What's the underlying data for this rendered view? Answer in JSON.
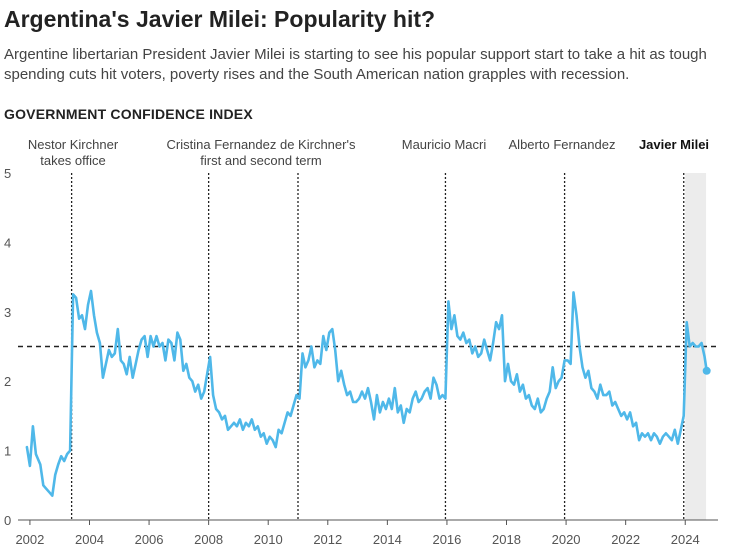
{
  "header": {
    "title": "Argentina's Javier Milei: Popularity hit?",
    "subtitle": "Argentine libertarian President Javier Milei is starting to see his popular support start to take a hit as tough spending cuts hit voters, poverty rises and the South American nation grapples with recession.",
    "section_label": "GOVERNMENT CONFIDENCE INDEX"
  },
  "colors": {
    "line": "#4fb8e9",
    "shade": "#ececec",
    "axis": "#555555",
    "text": "#444444"
  },
  "chart_data": {
    "type": "line",
    "title": "GOVERNMENT CONFIDENCE INDEX",
    "xlabel": "",
    "ylabel": "",
    "xlim": [
      2001.6,
      2025.1
    ],
    "ylim": [
      0,
      5
    ],
    "x_ticks": [
      "2002",
      "2004",
      "2006",
      "2008",
      "2010",
      "2012",
      "2014",
      "2016",
      "2018",
      "2020",
      "2022",
      "2024"
    ],
    "y_ticks": [
      "0",
      "1",
      "2",
      "3",
      "4",
      "5"
    ],
    "reference_line": {
      "y": 2.5,
      "style": "dashed"
    },
    "shaded_range": {
      "x_start": 2024.0,
      "x_end": 2024.7
    },
    "presidencies": [
      {
        "x": 2003.4,
        "lines": [
          "Nestor Kirchner",
          "takes office"
        ],
        "bold": false
      },
      {
        "x": 2008.0,
        "lines": [
          "Cristina Fernandez de Kirchner's",
          "first and second term"
        ],
        "bold": false
      },
      {
        "x": 2011.0,
        "lines": [],
        "bold": false
      },
      {
        "x": 2015.95,
        "lines": [
          "Mauricio Macri"
        ],
        "bold": false
      },
      {
        "x": 2019.95,
        "lines": [
          "Alberto Fernandez"
        ],
        "bold": false
      },
      {
        "x": 2023.95,
        "lines": [
          "Javier Milei"
        ],
        "bold": true
      }
    ],
    "series": [
      {
        "points": [
          [
            2001.9,
            1.05
          ],
          [
            2002.0,
            0.78
          ],
          [
            2002.1,
            1.35
          ],
          [
            2002.2,
            0.95
          ],
          [
            2002.35,
            0.8
          ],
          [
            2002.45,
            0.5
          ],
          [
            2002.55,
            0.45
          ],
          [
            2002.65,
            0.4
          ],
          [
            2002.75,
            0.35
          ],
          [
            2002.85,
            0.65
          ],
          [
            2002.95,
            0.8
          ],
          [
            2003.05,
            0.92
          ],
          [
            2003.15,
            0.85
          ],
          [
            2003.25,
            0.95
          ],
          [
            2003.35,
            1.0
          ],
          [
            2003.45,
            3.25
          ],
          [
            2003.55,
            3.2
          ],
          [
            2003.65,
            2.9
          ],
          [
            2003.75,
            2.95
          ],
          [
            2003.85,
            2.75
          ],
          [
            2003.95,
            3.1
          ],
          [
            2004.05,
            3.3
          ],
          [
            2004.15,
            2.95
          ],
          [
            2004.25,
            2.7
          ],
          [
            2004.35,
            2.55
          ],
          [
            2004.45,
            2.05
          ],
          [
            2004.55,
            2.25
          ],
          [
            2004.65,
            2.45
          ],
          [
            2004.75,
            2.35
          ],
          [
            2004.85,
            2.4
          ],
          [
            2004.95,
            2.75
          ],
          [
            2005.05,
            2.3
          ],
          [
            2005.15,
            2.25
          ],
          [
            2005.25,
            2.1
          ],
          [
            2005.35,
            2.35
          ],
          [
            2005.45,
            2.05
          ],
          [
            2005.55,
            2.25
          ],
          [
            2005.65,
            2.45
          ],
          [
            2005.75,
            2.6
          ],
          [
            2005.85,
            2.65
          ],
          [
            2005.95,
            2.35
          ],
          [
            2006.05,
            2.65
          ],
          [
            2006.15,
            2.5
          ],
          [
            2006.25,
            2.65
          ],
          [
            2006.35,
            2.5
          ],
          [
            2006.45,
            2.55
          ],
          [
            2006.55,
            2.3
          ],
          [
            2006.65,
            2.6
          ],
          [
            2006.75,
            2.55
          ],
          [
            2006.85,
            2.3
          ],
          [
            2006.95,
            2.7
          ],
          [
            2007.05,
            2.6
          ],
          [
            2007.15,
            2.15
          ],
          [
            2007.25,
            2.25
          ],
          [
            2007.35,
            2.05
          ],
          [
            2007.45,
            2.0
          ],
          [
            2007.55,
            1.85
          ],
          [
            2007.65,
            1.95
          ],
          [
            2007.75,
            1.75
          ],
          [
            2007.85,
            1.85
          ],
          [
            2007.95,
            2.1
          ],
          [
            2008.05,
            2.35
          ],
          [
            2008.15,
            1.8
          ],
          [
            2008.25,
            1.6
          ],
          [
            2008.35,
            1.55
          ],
          [
            2008.45,
            1.45
          ],
          [
            2008.55,
            1.5
          ],
          [
            2008.65,
            1.3
          ],
          [
            2008.75,
            1.35
          ],
          [
            2008.85,
            1.4
          ],
          [
            2008.95,
            1.35
          ],
          [
            2009.05,
            1.45
          ],
          [
            2009.15,
            1.3
          ],
          [
            2009.25,
            1.4
          ],
          [
            2009.35,
            1.35
          ],
          [
            2009.45,
            1.45
          ],
          [
            2009.55,
            1.3
          ],
          [
            2009.65,
            1.35
          ],
          [
            2009.75,
            1.2
          ],
          [
            2009.85,
            1.25
          ],
          [
            2009.95,
            1.1
          ],
          [
            2010.05,
            1.2
          ],
          [
            2010.15,
            1.15
          ],
          [
            2010.25,
            1.05
          ],
          [
            2010.35,
            1.3
          ],
          [
            2010.45,
            1.25
          ],
          [
            2010.55,
            1.4
          ],
          [
            2010.65,
            1.55
          ],
          [
            2010.75,
            1.5
          ],
          [
            2010.85,
            1.65
          ],
          [
            2010.95,
            1.8
          ],
          [
            2011.05,
            1.75
          ],
          [
            2011.15,
            2.4
          ],
          [
            2011.25,
            2.2
          ],
          [
            2011.35,
            2.3
          ],
          [
            2011.45,
            2.5
          ],
          [
            2011.55,
            2.2
          ],
          [
            2011.65,
            2.3
          ],
          [
            2011.75,
            2.25
          ],
          [
            2011.85,
            2.65
          ],
          [
            2011.95,
            2.45
          ],
          [
            2012.05,
            2.7
          ],
          [
            2012.15,
            2.75
          ],
          [
            2012.25,
            2.45
          ],
          [
            2012.35,
            2.0
          ],
          [
            2012.45,
            2.15
          ],
          [
            2012.55,
            1.95
          ],
          [
            2012.65,
            1.8
          ],
          [
            2012.75,
            1.85
          ],
          [
            2012.85,
            1.7
          ],
          [
            2012.95,
            1.7
          ],
          [
            2013.05,
            1.75
          ],
          [
            2013.15,
            1.85
          ],
          [
            2013.25,
            1.75
          ],
          [
            2013.35,
            1.9
          ],
          [
            2013.45,
            1.7
          ],
          [
            2013.55,
            1.45
          ],
          [
            2013.65,
            1.8
          ],
          [
            2013.75,
            1.55
          ],
          [
            2013.85,
            1.7
          ],
          [
            2013.95,
            1.6
          ],
          [
            2014.05,
            1.75
          ],
          [
            2014.15,
            1.6
          ],
          [
            2014.25,
            1.9
          ],
          [
            2014.35,
            1.55
          ],
          [
            2014.45,
            1.65
          ],
          [
            2014.55,
            1.4
          ],
          [
            2014.65,
            1.6
          ],
          [
            2014.75,
            1.55
          ],
          [
            2014.85,
            1.75
          ],
          [
            2014.95,
            1.85
          ],
          [
            2015.05,
            1.7
          ],
          [
            2015.15,
            1.75
          ],
          [
            2015.25,
            1.85
          ],
          [
            2015.35,
            1.9
          ],
          [
            2015.45,
            1.75
          ],
          [
            2015.55,
            2.05
          ],
          [
            2015.65,
            1.95
          ],
          [
            2015.75,
            1.75
          ],
          [
            2015.85,
            1.8
          ],
          [
            2015.95,
            1.75
          ],
          [
            2016.05,
            3.15
          ],
          [
            2016.15,
            2.75
          ],
          [
            2016.25,
            2.95
          ],
          [
            2016.35,
            2.65
          ],
          [
            2016.45,
            2.6
          ],
          [
            2016.55,
            2.7
          ],
          [
            2016.65,
            2.55
          ],
          [
            2016.75,
            2.6
          ],
          [
            2016.85,
            2.4
          ],
          [
            2016.95,
            2.5
          ],
          [
            2017.05,
            2.35
          ],
          [
            2017.15,
            2.4
          ],
          [
            2017.25,
            2.6
          ],
          [
            2017.35,
            2.45
          ],
          [
            2017.45,
            2.3
          ],
          [
            2017.55,
            2.55
          ],
          [
            2017.65,
            2.85
          ],
          [
            2017.75,
            2.75
          ],
          [
            2017.85,
            2.95
          ],
          [
            2017.95,
            2.0
          ],
          [
            2018.05,
            2.25
          ],
          [
            2018.15,
            2.0
          ],
          [
            2018.25,
            1.95
          ],
          [
            2018.35,
            2.1
          ],
          [
            2018.45,
            1.85
          ],
          [
            2018.55,
            1.95
          ],
          [
            2018.65,
            1.75
          ],
          [
            2018.75,
            1.8
          ],
          [
            2018.85,
            1.65
          ],
          [
            2018.95,
            1.6
          ],
          [
            2019.05,
            1.75
          ],
          [
            2019.15,
            1.55
          ],
          [
            2019.25,
            1.6
          ],
          [
            2019.35,
            1.75
          ],
          [
            2019.45,
            1.85
          ],
          [
            2019.55,
            2.2
          ],
          [
            2019.65,
            1.9
          ],
          [
            2019.75,
            2.0
          ],
          [
            2019.85,
            2.05
          ],
          [
            2019.95,
            2.3
          ],
          [
            2020.05,
            2.3
          ],
          [
            2020.15,
            2.25
          ],
          [
            2020.25,
            3.28
          ],
          [
            2020.35,
            2.95
          ],
          [
            2020.45,
            2.5
          ],
          [
            2020.55,
            2.2
          ],
          [
            2020.65,
            2.05
          ],
          [
            2020.75,
            2.15
          ],
          [
            2020.85,
            1.9
          ],
          [
            2020.95,
            1.85
          ],
          [
            2021.05,
            1.75
          ],
          [
            2021.15,
            1.95
          ],
          [
            2021.25,
            1.8
          ],
          [
            2021.35,
            1.8
          ],
          [
            2021.45,
            1.85
          ],
          [
            2021.55,
            1.65
          ],
          [
            2021.65,
            1.7
          ],
          [
            2021.75,
            1.6
          ],
          [
            2021.85,
            1.5
          ],
          [
            2021.95,
            1.55
          ],
          [
            2022.05,
            1.45
          ],
          [
            2022.15,
            1.55
          ],
          [
            2022.25,
            1.35
          ],
          [
            2022.35,
            1.4
          ],
          [
            2022.45,
            1.15
          ],
          [
            2022.55,
            1.25
          ],
          [
            2022.65,
            1.2
          ],
          [
            2022.75,
            1.25
          ],
          [
            2022.85,
            1.15
          ],
          [
            2022.95,
            1.25
          ],
          [
            2023.05,
            1.2
          ],
          [
            2023.15,
            1.1
          ],
          [
            2023.25,
            1.2
          ],
          [
            2023.35,
            1.25
          ],
          [
            2023.45,
            1.2
          ],
          [
            2023.55,
            1.15
          ],
          [
            2023.65,
            1.3
          ],
          [
            2023.75,
            1.1
          ],
          [
            2023.85,
            1.3
          ],
          [
            2023.95,
            1.5
          ],
          [
            2024.05,
            2.85
          ],
          [
            2024.15,
            2.5
          ],
          [
            2024.25,
            2.55
          ],
          [
            2024.35,
            2.5
          ],
          [
            2024.45,
            2.5
          ],
          [
            2024.55,
            2.55
          ],
          [
            2024.65,
            2.35
          ],
          [
            2024.72,
            2.15
          ]
        ]
      }
    ]
  }
}
